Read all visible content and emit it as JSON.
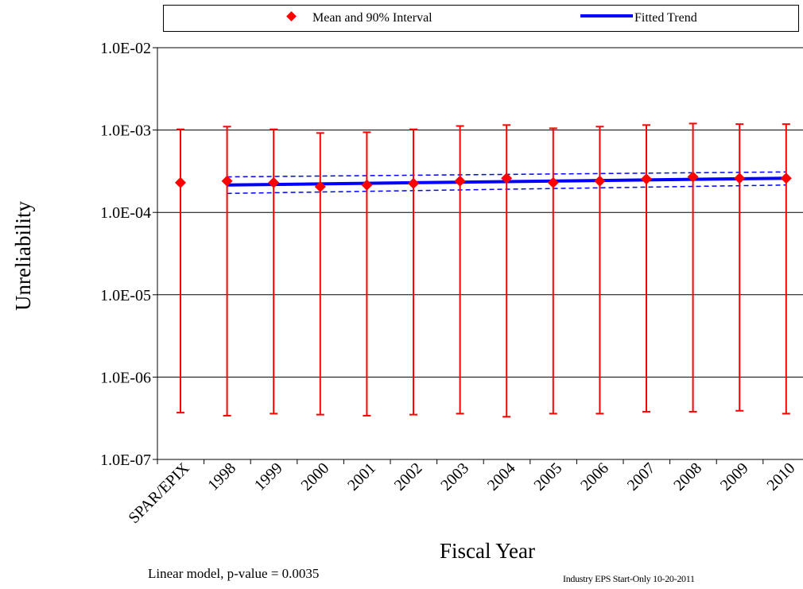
{
  "legend": {
    "mean_label": "Mean and 90% Interval",
    "trend_label": "Fitted Trend"
  },
  "footer": {
    "model_note": "Linear model, p-value = 0.0035",
    "source_note": "Industry EPS Start-Only 10-20-2011"
  },
  "colors": {
    "points": "#ff0000",
    "trend": "#0000ff",
    "grid": "#000000"
  },
  "chart_data": {
    "type": "scatter",
    "xlabel": "Fiscal Year",
    "ylabel": "Unreliability",
    "yscale": "log",
    "ylim": [
      1e-07,
      0.01
    ],
    "ytick_labels": [
      "1.0E-07",
      "1.0E-06",
      "1.0E-05",
      "1.0E-04",
      "1.0E-03",
      "1.0E-02"
    ],
    "grid": true,
    "legend_position": "top",
    "categories": [
      "SPAR/EPIX",
      "1998",
      "1999",
      "2000",
      "2001",
      "2002",
      "2003",
      "2004",
      "2005",
      "2006",
      "2007",
      "2008",
      "2009",
      "2010"
    ],
    "series": [
      {
        "name": "Mean and 90% Interval",
        "mean": [
          0.00023,
          0.00024,
          0.00023,
          0.000205,
          0.000215,
          0.000225,
          0.00024,
          0.00026,
          0.00023,
          0.00024,
          0.000255,
          0.00027,
          0.00026,
          0.00026
        ],
        "lower": [
          3.7e-07,
          3.4e-07,
          3.6e-07,
          3.5e-07,
          3.4e-07,
          3.5e-07,
          3.6e-07,
          3.3e-07,
          3.6e-07,
          3.6e-07,
          3.8e-07,
          3.8e-07,
          3.9e-07,
          3.6e-07
        ],
        "upper": [
          0.00102,
          0.0011,
          0.00102,
          0.00092,
          0.00094,
          0.00102,
          0.00112,
          0.00115,
          0.00105,
          0.0011,
          0.00115,
          0.0012,
          0.00118,
          0.00118
        ]
      },
      {
        "name": "Fitted Trend",
        "years": [
          "1998",
          "2010"
        ],
        "trend": [
          0.000215,
          0.00026
        ],
        "band_lower": [
          0.00017,
          0.000215
        ],
        "band_upper": [
          0.00027,
          0.00031
        ]
      }
    ]
  }
}
